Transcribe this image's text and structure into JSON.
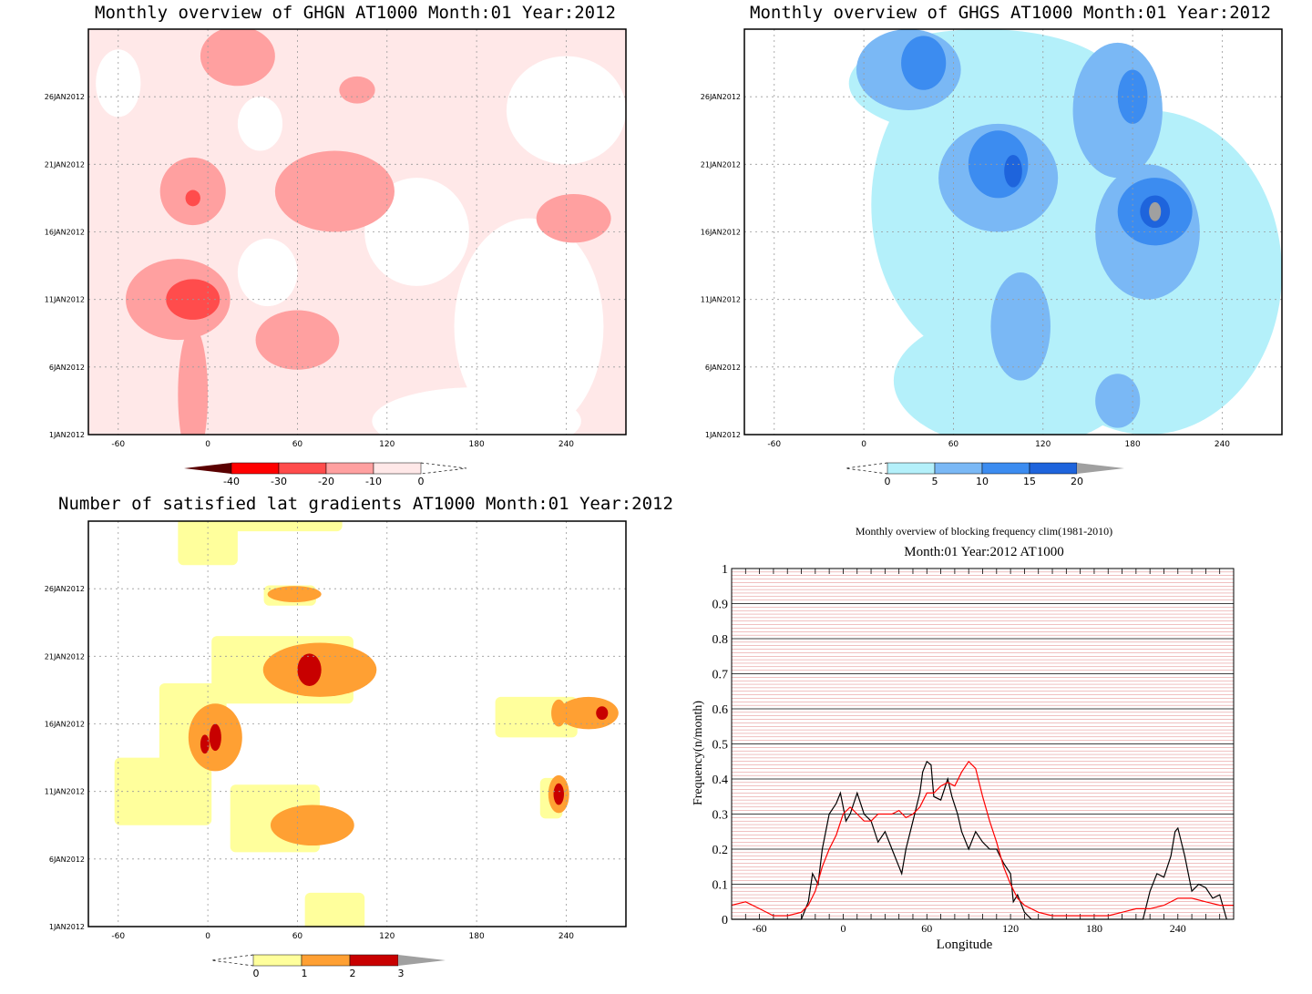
{
  "chart_data": [
    {
      "id": "ghgn",
      "type": "heatmap",
      "title": "Monthly overview of GHGN AT1000 Month:01 Year:2012",
      "x_ticks": [
        -60,
        0,
        60,
        120,
        180,
        240
      ],
      "y_ticks": [
        "1JAN2012",
        "6JAN2012",
        "11JAN2012",
        "16JAN2012",
        "21JAN2012",
        "26JAN2012"
      ],
      "xlim": [
        -80,
        280
      ],
      "ylim_days": [
        1,
        31
      ],
      "colorbar": {
        "ticks": [
          "-40",
          "-30",
          "-20",
          "-10",
          "0"
        ],
        "colors": [
          "#5a0000",
          "#ff0000",
          "#ff4c4c",
          "#ffa0a0",
          "#ffe8e8"
        ]
      },
      "blobs": [
        {
          "lon": -10,
          "day": 11,
          "rlon": 18,
          "rday": 1.5,
          "level": 3
        },
        {
          "lon": -20,
          "day": 11,
          "rlon": 35,
          "rday": 3,
          "level": 2
        },
        {
          "lon": -10,
          "day": 19,
          "rlon": 22,
          "rday": 2.5,
          "level": 2
        },
        {
          "lon": -10,
          "day": 18.5,
          "rlon": 5,
          "rday": 0.6,
          "level": 3
        },
        {
          "lon": 85,
          "day": 19,
          "rlon": 40,
          "rday": 3,
          "level": 2
        },
        {
          "lon": 60,
          "day": 8,
          "rlon": 28,
          "rday": 2.2,
          "level": 2
        },
        {
          "lon": 245,
          "day": 17,
          "rlon": 25,
          "rday": 1.8,
          "level": 2
        },
        {
          "lon": 20,
          "day": 29,
          "rlon": 25,
          "rday": 2.2,
          "level": 2
        },
        {
          "lon": 100,
          "day": 26.5,
          "rlon": 12,
          "rday": 1,
          "level": 2
        },
        {
          "lon": -10,
          "day": 4,
          "rlon": 10,
          "rday": 5,
          "level": 2
        }
      ],
      "white_areas": [
        {
          "lon": 215,
          "day": 9,
          "rlon": 50,
          "rday": 8
        },
        {
          "lon": 180,
          "day": 2,
          "rlon": 70,
          "rday": 2.5
        },
        {
          "lon": 140,
          "day": 16,
          "rlon": 35,
          "rday": 4
        },
        {
          "lon": 240,
          "day": 25,
          "rlon": 40,
          "rday": 4
        },
        {
          "lon": -60,
          "day": 27,
          "rlon": 15,
          "rday": 2.5
        },
        {
          "lon": 35,
          "day": 24,
          "rlon": 15,
          "rday": 2
        },
        {
          "lon": 40,
          "day": 13,
          "rlon": 20,
          "rday": 2.5
        }
      ]
    },
    {
      "id": "ghgs",
      "type": "heatmap",
      "title": "Monthly overview of GHGS AT1000 Month:01 Year:2012",
      "x_ticks": [
        -60,
        0,
        60,
        120,
        180,
        240
      ],
      "y_ticks": [
        "1JAN2012",
        "6JAN2012",
        "11JAN2012",
        "16JAN2012",
        "21JAN2012",
        "26JAN2012"
      ],
      "xlim": [
        -80,
        280
      ],
      "ylim_days": [
        1,
        31
      ],
      "colorbar": {
        "ticks": [
          "0",
          "5",
          "10",
          "15",
          "20"
        ],
        "colors": [
          "#ffffff",
          "#b4f0fa",
          "#7ab8f5",
          "#3c8cf0",
          "#1e64dc",
          "#a0a0a0"
        ]
      },
      "blobs": [
        {
          "lon": 90,
          "day": 18,
          "rlon": 85,
          "rday": 12,
          "level": 1
        },
        {
          "lon": 190,
          "day": 13,
          "rlon": 90,
          "rday": 12,
          "level": 1
        },
        {
          "lon": 100,
          "day": 5,
          "rlon": 80,
          "rday": 5,
          "level": 1
        },
        {
          "lon": 80,
          "day": 27,
          "rlon": 90,
          "rday": 4,
          "level": 1
        },
        {
          "lon": 30,
          "day": 28,
          "rlon": 35,
          "rday": 3,
          "level": 2
        },
        {
          "lon": 170,
          "day": 25,
          "rlon": 30,
          "rday": 5,
          "level": 2
        },
        {
          "lon": 90,
          "day": 20,
          "rlon": 40,
          "rday": 4,
          "level": 2
        },
        {
          "lon": 190,
          "day": 16,
          "rlon": 35,
          "rday": 5,
          "level": 2
        },
        {
          "lon": 105,
          "day": 9,
          "rlon": 20,
          "rday": 4,
          "level": 2
        },
        {
          "lon": 170,
          "day": 3.5,
          "rlon": 15,
          "rday": 2,
          "level": 2
        },
        {
          "lon": 195,
          "day": 17.5,
          "rlon": 25,
          "rday": 2.5,
          "level": 3
        },
        {
          "lon": 90,
          "day": 21,
          "rlon": 20,
          "rday": 2.5,
          "level": 3
        },
        {
          "lon": 40,
          "day": 28.5,
          "rlon": 15,
          "rday": 2,
          "level": 3
        },
        {
          "lon": 180,
          "day": 26,
          "rlon": 10,
          "rday": 2,
          "level": 3
        },
        {
          "lon": 195,
          "day": 17.5,
          "rlon": 10,
          "rday": 1.2,
          "level": 4
        },
        {
          "lon": 100,
          "day": 20.5,
          "rlon": 6,
          "rday": 1.2,
          "level": 4
        },
        {
          "lon": 195,
          "day": 17.5,
          "rlon": 4,
          "rday": 0.7,
          "level": 5
        }
      ]
    },
    {
      "id": "lat-gradients",
      "type": "heatmap",
      "title": "Number of satisfied lat gradients AT1000 Month:01 Year:2012",
      "x_ticks": [
        -60,
        0,
        60,
        120,
        180,
        240
      ],
      "y_ticks": [
        "1JAN2012",
        "6JAN2012",
        "11JAN2012",
        "16JAN2012",
        "21JAN2012",
        "26JAN2012"
      ],
      "xlim": [
        -80,
        280
      ],
      "ylim_days": [
        1,
        31
      ],
      "colorbar": {
        "ticks": [
          "0",
          "1",
          "2",
          "3"
        ],
        "colors": [
          "#ffff9c",
          "#ffa033",
          "#c80000",
          "#a0a0a0"
        ]
      },
      "rects": [
        {
          "lon": 0,
          "day": 29.5,
          "w": 40,
          "h": 3.5,
          "level": 1
        },
        {
          "lon": 50,
          "day": 31,
          "w": 80,
          "h": 1.5,
          "level": 1
        },
        {
          "lon": 55,
          "day": 25.5,
          "w": 35,
          "h": 1.5,
          "level": 1
        },
        {
          "lon": 50,
          "day": 20,
          "w": 95,
          "h": 5,
          "level": 1
        },
        {
          "lon": -10,
          "day": 16,
          "w": 45,
          "h": 6,
          "level": 1
        },
        {
          "lon": -30,
          "day": 11,
          "w": 65,
          "h": 5,
          "level": 1
        },
        {
          "lon": 45,
          "day": 9,
          "w": 60,
          "h": 5,
          "level": 1
        },
        {
          "lon": 85,
          "day": 2,
          "w": 40,
          "h": 3,
          "level": 1
        },
        {
          "lon": 220,
          "day": 16.5,
          "w": 55,
          "h": 3,
          "level": 1
        },
        {
          "lon": 230,
          "day": 10.5,
          "w": 15,
          "h": 3,
          "level": 1
        }
      ],
      "blobs": [
        {
          "lon": 58,
          "day": 25.6,
          "rlon": 18,
          "rday": 0.6,
          "level": 2
        },
        {
          "lon": 75,
          "day": 20,
          "rlon": 38,
          "rday": 2,
          "level": 2
        },
        {
          "lon": 5,
          "day": 15,
          "rlon": 18,
          "rday": 2.5,
          "level": 2
        },
        {
          "lon": 70,
          "day": 8.5,
          "rlon": 28,
          "rday": 1.5,
          "level": 2
        },
        {
          "lon": 255,
          "day": 16.8,
          "rlon": 20,
          "rday": 1.2,
          "level": 2
        },
        {
          "lon": 235,
          "day": 16.8,
          "rlon": 5,
          "rday": 1,
          "level": 2
        },
        {
          "lon": 235,
          "day": 10.8,
          "rlon": 7,
          "rday": 1.4,
          "level": 2
        },
        {
          "lon": 68,
          "day": 20,
          "rlon": 8,
          "rday": 1.2,
          "level": 3
        },
        {
          "lon": 5,
          "day": 15,
          "rlon": 4,
          "rday": 1,
          "level": 3
        },
        {
          "lon": -2,
          "day": 14.5,
          "rlon": 3,
          "rday": 0.7,
          "level": 3
        },
        {
          "lon": 264,
          "day": 16.8,
          "rlon": 4,
          "rday": 0.5,
          "level": 3
        },
        {
          "lon": 235,
          "day": 10.8,
          "rlon": 3.5,
          "rday": 0.8,
          "level": 3
        }
      ]
    },
    {
      "id": "blocking-frequency",
      "type": "line",
      "title": "Monthly overview of blocking frequency clim(1981-2010)",
      "subtitle": "Month:01 Year:2012  AT1000",
      "xlabel": "Longitude",
      "ylabel": "Frequency(n/month)",
      "x_ticks": [
        -60,
        0,
        60,
        120,
        180,
        240
      ],
      "y_ticks": [
        "0",
        "0.1",
        "0.2",
        "0.3",
        "0.4",
        "0.5",
        "0.6",
        "0.7",
        "0.8",
        "0.9",
        "1"
      ],
      "xlim": [
        -80,
        280
      ],
      "ylim": [
        0,
        1
      ],
      "series": [
        {
          "color": "#000000",
          "x": [
            -80,
            -30,
            -25,
            -22,
            -18,
            -15,
            -10,
            -5,
            -2,
            2,
            5,
            10,
            15,
            20,
            25,
            30,
            35,
            40,
            42,
            45,
            50,
            55,
            57,
            60,
            63,
            65,
            70,
            75,
            78,
            82,
            85,
            90,
            95,
            100,
            105,
            110,
            115,
            120,
            122,
            125,
            130,
            135,
            200,
            215,
            220,
            225,
            230,
            235,
            238,
            240,
            245,
            250,
            255,
            260,
            265,
            270,
            275
          ],
          "y": [
            0,
            0,
            0.05,
            0.13,
            0.1,
            0.2,
            0.3,
            0.33,
            0.36,
            0.28,
            0.3,
            0.36,
            0.3,
            0.28,
            0.22,
            0.25,
            0.2,
            0.15,
            0.13,
            0.2,
            0.28,
            0.36,
            0.42,
            0.45,
            0.44,
            0.35,
            0.34,
            0.4,
            0.35,
            0.3,
            0.25,
            0.2,
            0.25,
            0.22,
            0.2,
            0.2,
            0.16,
            0.13,
            0.05,
            0.07,
            0.02,
            0,
            0,
            0,
            0.08,
            0.13,
            0.12,
            0.18,
            0.25,
            0.26,
            0.18,
            0.08,
            0.1,
            0.09,
            0.06,
            0.07,
            0
          ]
        },
        {
          "color": "#ff0000",
          "x": [
            -80,
            -70,
            -60,
            -50,
            -40,
            -30,
            -25,
            -20,
            -15,
            -10,
            -5,
            0,
            5,
            10,
            15,
            20,
            25,
            30,
            35,
            40,
            45,
            50,
            55,
            60,
            65,
            70,
            75,
            80,
            85,
            90,
            95,
            100,
            105,
            110,
            115,
            120,
            125,
            130,
            140,
            150,
            160,
            170,
            180,
            190,
            200,
            210,
            220,
            230,
            240,
            250,
            260,
            270,
            280
          ],
          "y": [
            0.04,
            0.05,
            0.03,
            0.01,
            0.01,
            0.02,
            0.04,
            0.08,
            0.15,
            0.2,
            0.24,
            0.3,
            0.32,
            0.3,
            0.28,
            0.28,
            0.3,
            0.3,
            0.3,
            0.31,
            0.29,
            0.3,
            0.32,
            0.36,
            0.36,
            0.38,
            0.39,
            0.38,
            0.42,
            0.45,
            0.43,
            0.35,
            0.28,
            0.22,
            0.15,
            0.1,
            0.06,
            0.04,
            0.02,
            0.01,
            0.01,
            0.01,
            0.01,
            0.01,
            0.02,
            0.03,
            0.03,
            0.04,
            0.06,
            0.06,
            0.05,
            0.04,
            0.04
          ]
        }
      ]
    }
  ]
}
